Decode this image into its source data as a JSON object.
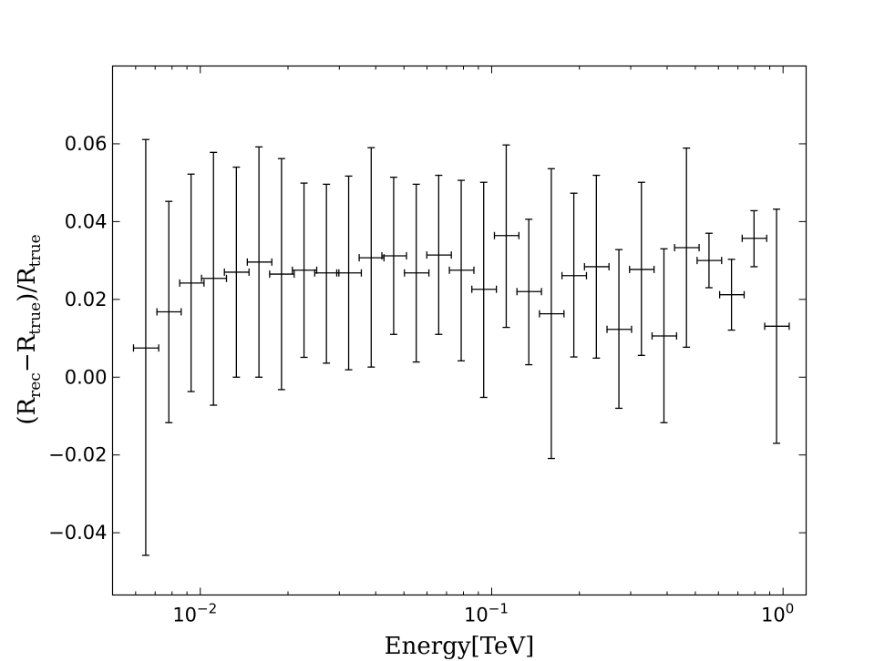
{
  "chart_data": {
    "type": "scatter",
    "title": "",
    "xlabel": "Energy[TeV]",
    "ylabel": {
      "open": "(R",
      "sub1": "rec",
      "minus": "−R",
      "sub2": "true",
      "mid": ")/R",
      "sub3": "true"
    },
    "xscale": "log",
    "xlim": [
      0.005,
      1.2
    ],
    "ylim": [
      -0.056,
      0.08
    ],
    "grid": false,
    "x_ticks": [
      {
        "value": 0.01,
        "base": "10",
        "exp": "−2"
      },
      {
        "value": 0.1,
        "base": "10",
        "exp": "−1"
      },
      {
        "value": 1,
        "base": "10",
        "exp": "0"
      }
    ],
    "y_ticks": [
      {
        "value": -0.04,
        "label": "−0.04"
      },
      {
        "value": -0.02,
        "label": "−0.02"
      },
      {
        "value": 0.0,
        "label": "0.00"
      },
      {
        "value": 0.02,
        "label": "0.02"
      },
      {
        "value": 0.04,
        "label": "0.04"
      },
      {
        "value": 0.06,
        "label": "0.06"
      }
    ],
    "series": [
      {
        "points": [
          {
            "x": 0.0065,
            "y": 0.0075,
            "x_lo": 0.0059,
            "x_hi": 0.0072,
            "y_lo": -0.0458,
            "y_hi": 0.0611
          },
          {
            "x": 0.0078,
            "y": 0.0168,
            "x_lo": 0.0071,
            "x_hi": 0.0086,
            "y_lo": -0.0117,
            "y_hi": 0.0452
          },
          {
            "x": 0.0093,
            "y": 0.0242,
            "x_lo": 0.0085,
            "x_hi": 0.0103,
            "y_lo": -0.0037,
            "y_hi": 0.0522
          },
          {
            "x": 0.0111,
            "y": 0.0254,
            "x_lo": 0.0101,
            "x_hi": 0.0123,
            "y_lo": -0.0072,
            "y_hi": 0.0578
          },
          {
            "x": 0.0133,
            "y": 0.027,
            "x_lo": 0.0121,
            "x_hi": 0.0147,
            "y_lo": 0.0,
            "y_hi": 0.054
          },
          {
            "x": 0.0159,
            "y": 0.0296,
            "x_lo": 0.0145,
            "x_hi": 0.0176,
            "y_lo": 0.0,
            "y_hi": 0.0592
          },
          {
            "x": 0.019,
            "y": 0.0265,
            "x_lo": 0.0173,
            "x_hi": 0.021,
            "y_lo": -0.0032,
            "y_hi": 0.0562
          },
          {
            "x": 0.0227,
            "y": 0.0275,
            "x_lo": 0.0207,
            "x_hi": 0.0251,
            "y_lo": 0.0051,
            "y_hi": 0.0499
          },
          {
            "x": 0.0271,
            "y": 0.0268,
            "x_lo": 0.0247,
            "x_hi": 0.0299,
            "y_lo": 0.0036,
            "y_hi": 0.0496
          },
          {
            "x": 0.0323,
            "y": 0.0268,
            "x_lo": 0.0294,
            "x_hi": 0.0357,
            "y_lo": 0.0019,
            "y_hi": 0.0517
          },
          {
            "x": 0.0386,
            "y": 0.0307,
            "x_lo": 0.0351,
            "x_hi": 0.0427,
            "y_lo": 0.0026,
            "y_hi": 0.059
          },
          {
            "x": 0.0461,
            "y": 0.0312,
            "x_lo": 0.042,
            "x_hi": 0.051,
            "y_lo": 0.011,
            "y_hi": 0.0514
          },
          {
            "x": 0.0551,
            "y": 0.0268,
            "x_lo": 0.0502,
            "x_hi": 0.0609,
            "y_lo": 0.0039,
            "y_hi": 0.0496
          },
          {
            "x": 0.0658,
            "y": 0.0314,
            "x_lo": 0.0599,
            "x_hi": 0.0727,
            "y_lo": 0.011,
            "y_hi": 0.0519
          },
          {
            "x": 0.0786,
            "y": 0.0275,
            "x_lo": 0.0716,
            "x_hi": 0.0869,
            "y_lo": 0.0042,
            "y_hi": 0.0506
          },
          {
            "x": 0.0939,
            "y": 0.0226,
            "x_lo": 0.0855,
            "x_hi": 0.1038,
            "y_lo": -0.0052,
            "y_hi": 0.0501
          },
          {
            "x": 0.1122,
            "y": 0.0364,
            "x_lo": 0.1022,
            "x_hi": 0.124,
            "y_lo": 0.0128,
            "y_hi": 0.0597
          },
          {
            "x": 0.1341,
            "y": 0.022,
            "x_lo": 0.1221,
            "x_hi": 0.1482,
            "y_lo": 0.0032,
            "y_hi": 0.0406
          },
          {
            "x": 0.1602,
            "y": 0.0163,
            "x_lo": 0.1459,
            "x_hi": 0.1771,
            "y_lo": -0.0209,
            "y_hi": 0.0536
          },
          {
            "x": 0.1914,
            "y": 0.0261,
            "x_lo": 0.1743,
            "x_hi": 0.2115,
            "y_lo": 0.0052,
            "y_hi": 0.0473
          },
          {
            "x": 0.2287,
            "y": 0.0284,
            "x_lo": 0.2082,
            "x_hi": 0.2527,
            "y_lo": 0.0049,
            "y_hi": 0.0519
          },
          {
            "x": 0.2733,
            "y": 0.0123,
            "x_lo": 0.2488,
            "x_hi": 0.302,
            "y_lo": -0.008,
            "y_hi": 0.0328
          },
          {
            "x": 0.3265,
            "y": 0.0277,
            "x_lo": 0.2973,
            "x_hi": 0.3608,
            "y_lo": 0.0056,
            "y_hi": 0.0501
          },
          {
            "x": 0.3901,
            "y": 0.0106,
            "x_lo": 0.3552,
            "x_hi": 0.4311,
            "y_lo": -0.0117,
            "y_hi": 0.033
          },
          {
            "x": 0.4661,
            "y": 0.0333,
            "x_lo": 0.4244,
            "x_hi": 0.5151,
            "y_lo": 0.0077,
            "y_hi": 0.0589
          },
          {
            "x": 0.5569,
            "y": 0.03,
            "x_lo": 0.5071,
            "x_hi": 0.6154,
            "y_lo": 0.023,
            "y_hi": 0.037
          },
          {
            "x": 0.6654,
            "y": 0.0212,
            "x_lo": 0.6059,
            "x_hi": 0.7353,
            "y_lo": 0.0121,
            "y_hi": 0.0303
          },
          {
            "x": 0.795,
            "y": 0.0357,
            "x_lo": 0.7239,
            "x_hi": 0.8786,
            "y_lo": 0.0284,
            "y_hi": 0.0428
          },
          {
            "x": 0.9499,
            "y": 0.0131,
            "x_lo": 0.8649,
            "x_hi": 1.0497,
            "y_lo": -0.017,
            "y_hi": 0.0432
          }
        ]
      }
    ]
  }
}
